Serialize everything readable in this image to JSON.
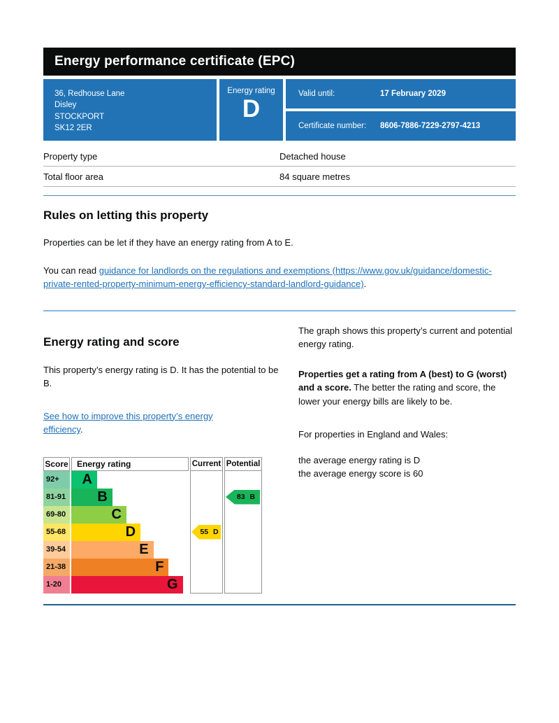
{
  "header": {
    "title": "Energy performance certificate (EPC)"
  },
  "summary": {
    "address_lines": [
      "36, Redhouse Lane",
      "Disley",
      "STOCKPORT",
      "SK12 2ER"
    ],
    "energy_rating_label": "Energy rating",
    "energy_rating_value": "D",
    "valid_until_label": "Valid until:",
    "valid_until_value": "17 February 2029",
    "certificate_number_label": "Certificate number:",
    "certificate_number_value": "8606-7886-7229-2797-4213"
  },
  "property_details": {
    "rows": [
      {
        "label": "Property type",
        "value": "Detached house"
      },
      {
        "label": "Total floor area",
        "value": "84 square metres"
      }
    ]
  },
  "rules_section": {
    "heading": "Rules on letting this property",
    "paragraph1": "Properties can be let if they have an energy rating from A to E.",
    "paragraph2_prefix": "You can read ",
    "link_text": "guidance for landlords on the regulations and exemptions (https://www.gov.uk/guidance/domestic-private-rented-property-minimum-energy-efficiency-standard-landlord-guidance)",
    "paragraph2_suffix": "."
  },
  "rating_section": {
    "heading": "Energy rating and score",
    "intro": "This property’s energy rating is D. It has the potential to be B.",
    "improve_link": "See how to improve this property’s energy efficiency",
    "improve_suffix": ".",
    "graph_intro": "The graph shows this property’s current and potential energy rating.",
    "ratings_bold": "Properties get a rating from A (best) to G (worst) and a score.",
    "ratings_rest": " The better the rating and score, the lower your energy bills are likely to be.",
    "england_wales": "For properties in England and Wales:",
    "avg_rating": "the average energy rating is D",
    "avg_score": "the average energy score is 60"
  },
  "chart_data": {
    "type": "bar",
    "title": "Energy rating and score graph",
    "headers": {
      "score": "Score",
      "rating": "Energy rating",
      "current": "Current",
      "potential": "Potential"
    },
    "bands": [
      {
        "score_range": "92+",
        "letter": "A",
        "color": "#0bc26e",
        "tint": "#7fccab",
        "bar_width_pct": 22
      },
      {
        "score_range": "81-91",
        "letter": "B",
        "color": "#19b459",
        "tint": "#8fd49f",
        "bar_width_pct": 35
      },
      {
        "score_range": "69-80",
        "letter": "C",
        "color": "#8dce46",
        "tint": "#c8e591",
        "bar_width_pct": 47
      },
      {
        "score_range": "55-68",
        "letter": "D",
        "color": "#ffd500",
        "tint": "#ffe664",
        "bar_width_pct": 59
      },
      {
        "score_range": "39-54",
        "letter": "E",
        "color": "#fcaa65",
        "tint": "#fdcb9b",
        "bar_width_pct": 70
      },
      {
        "score_range": "21-38",
        "letter": "F",
        "color": "#ef8023",
        "tint": "#f4a966",
        "bar_width_pct": 83
      },
      {
        "score_range": "1-20",
        "letter": "G",
        "color": "#e9153b",
        "tint": "#f07f92",
        "bar_width_pct": 95
      }
    ],
    "current": {
      "score": 55,
      "letter": "D",
      "label": "55 D",
      "band_index": 3,
      "color": "#ffd500"
    },
    "potential": {
      "score": 83,
      "letter": "B",
      "label": "83 B",
      "band_index": 1,
      "color": "#19b459"
    }
  }
}
